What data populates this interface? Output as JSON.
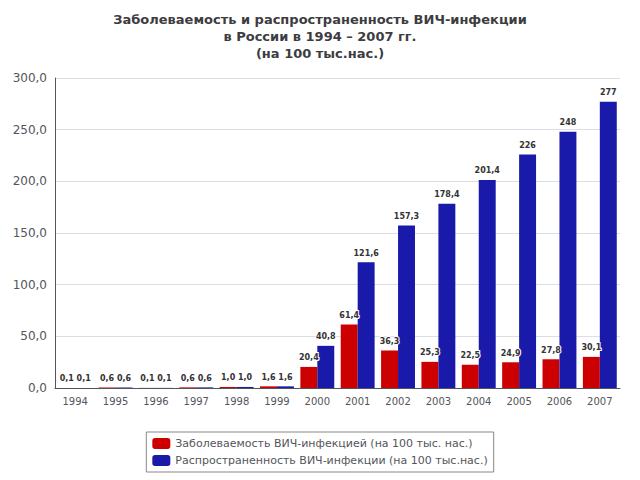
{
  "chart_data": {
    "type": "bar",
    "title": "Заболеваемость и распространенность ВИЧ-инфекции\nв России в 1994 – 2007 гг.\n(на 100 тыс.нас.)",
    "categories": [
      "1994",
      "1995",
      "1996",
      "1997",
      "1998",
      "1999",
      "2000",
      "2001",
      "2002",
      "2003",
      "2004",
      "2005",
      "2006",
      "2007"
    ],
    "series": [
      {
        "name": "Заболеваемость ВИЧ-инфекцией (на 100 тыс. нас.)",
        "color": "#cc0000",
        "values": [
          0.1,
          0.6,
          0.1,
          0.6,
          1.0,
          1.6,
          20.4,
          61.4,
          36.3,
          25.3,
          22.5,
          24.9,
          27.8,
          30.1
        ],
        "value_labels": [
          "0,1",
          "0,6",
          "0,1",
          "0,6",
          "1,0",
          "1,6",
          "20,4",
          "61,4",
          "36,3",
          "25,3",
          "22,5",
          "24,9",
          "27,8",
          "30,1"
        ]
      },
      {
        "name": "Распространенность ВИЧ-инфекции (на 100 тыс.нас.)",
        "color": "#1a1aaa",
        "values": [
          0.1,
          0.6,
          0.1,
          0.6,
          1.0,
          1.6,
          40.8,
          121.6,
          157.3,
          178.4,
          201.4,
          226.0,
          248.0,
          277.0
        ],
        "value_labels": [
          "0,1",
          "0,6",
          "0,1",
          "0,6",
          "1,0",
          "1,6",
          "40,8",
          "121,6",
          "157,3",
          "178,4",
          "201,4",
          "226",
          "248",
          "277"
        ]
      }
    ],
    "ylim": [
      0,
      300
    ],
    "yticks": [
      {
        "value": 0,
        "label": "0,0"
      },
      {
        "value": 50,
        "label": "50,0"
      },
      {
        "value": 100,
        "label": "100,0"
      },
      {
        "value": 150,
        "label": "150,0"
      },
      {
        "value": 200,
        "label": "200,0"
      },
      {
        "value": 250,
        "label": "250,0"
      },
      {
        "value": 300,
        "label": "300,0"
      }
    ],
    "grid": true,
    "legend": "bottom",
    "data_labels": true
  }
}
